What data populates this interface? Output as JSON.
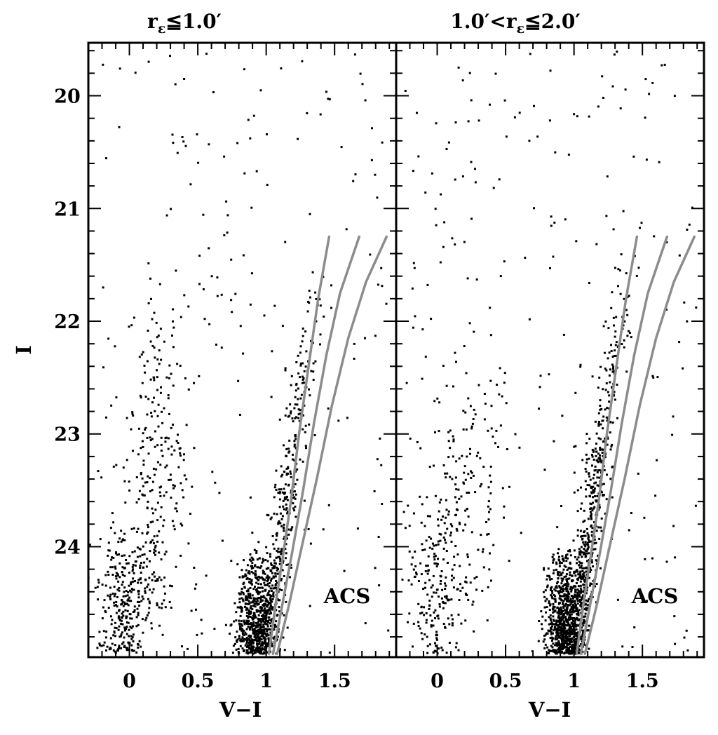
{
  "chart_data": [
    {
      "type": "scatter",
      "panel": "left",
      "title": "rε≦1.0′",
      "title_main": "r",
      "title_sub": "ε",
      "title_rest": "≦1.0′",
      "xlabel": "V−I",
      "ylabel": "I",
      "xlim": [
        -0.3,
        1.95
      ],
      "ylim": [
        24.98,
        19.53
      ],
      "y_inverted": true,
      "xticks": [
        "0",
        "0.5",
        "1",
        "1.5"
      ],
      "yticks": [
        "20",
        "21",
        "22",
        "23",
        "24"
      ],
      "annotation": "ACS",
      "point_color": "#000000",
      "line_color": "#8c8c8c",
      "populations": {
        "blue_plume": {
          "x_mean": -0.05,
          "x_spread": 0.09,
          "i_range": [
            23.8,
            24.95
          ],
          "count": 260
        },
        "blue_loop": {
          "x_mean": 0.18,
          "x_spread": 0.12,
          "i_range": [
            21.8,
            24.6
          ],
          "count": 280
        },
        "red_clump": {
          "x_mean": 0.92,
          "x_spread": 0.07,
          "i_range": [
            24.0,
            24.95
          ],
          "count": 620
        },
        "rgb": {
          "i_range": [
            21.3,
            24.95
          ],
          "count": 420
        },
        "field": {
          "x_range": [
            -0.25,
            1.9
          ],
          "i_range": [
            19.6,
            24.95
          ],
          "count": 220
        }
      },
      "series": [
        {
          "x": [
            1.46,
            1.38,
            1.31,
            1.24,
            1.18,
            1.12,
            1.07,
            1.02
          ],
          "y": [
            21.25,
            21.8,
            22.4,
            23.0,
            23.6,
            24.1,
            24.5,
            24.95
          ]
        },
        {
          "x": [
            1.68,
            1.54,
            1.44,
            1.35,
            1.27,
            1.19,
            1.12,
            1.05
          ],
          "y": [
            21.25,
            21.75,
            22.3,
            22.9,
            23.5,
            24.05,
            24.5,
            24.95
          ]
        },
        {
          "x": [
            1.88,
            1.73,
            1.6,
            1.48,
            1.37,
            1.26,
            1.17,
            1.08
          ],
          "y": [
            21.25,
            21.65,
            22.15,
            22.75,
            23.4,
            24.0,
            24.5,
            24.95
          ]
        }
      ]
    },
    {
      "type": "scatter",
      "panel": "right",
      "title": "1.0′<rε≦2.0′",
      "title_main": "1.0′<r",
      "title_sub": "ε",
      "title_rest": "≦2.0′",
      "xlabel": "V−I",
      "xlim": [
        -0.3,
        1.95
      ],
      "ylim": [
        24.98,
        19.53
      ],
      "y_inverted": true,
      "xticks": [
        "0",
        "0.5",
        "1",
        "1.5"
      ],
      "annotation": "ACS",
      "point_color": "#000000",
      "line_color": "#8c8c8c",
      "populations": {
        "blue_plume": {
          "x_mean": -0.02,
          "x_spread": 0.1,
          "i_range": [
            23.5,
            24.95
          ],
          "count": 170
        },
        "blue_loop": {
          "x_mean": 0.2,
          "x_spread": 0.13,
          "i_range": [
            22.3,
            24.5
          ],
          "count": 170
        },
        "red_clump": {
          "x_mean": 0.93,
          "x_spread": 0.07,
          "i_range": [
            24.0,
            24.95
          ],
          "count": 800
        },
        "rgb": {
          "i_range": [
            21.3,
            24.95
          ],
          "count": 560
        },
        "field": {
          "x_range": [
            -0.25,
            1.9
          ],
          "i_range": [
            19.6,
            24.95
          ],
          "count": 230
        }
      },
      "series": [
        {
          "x": [
            1.46,
            1.38,
            1.31,
            1.24,
            1.18,
            1.12,
            1.07,
            1.02
          ],
          "y": [
            21.25,
            21.8,
            22.4,
            23.0,
            23.6,
            24.1,
            24.5,
            24.95
          ]
        },
        {
          "x": [
            1.68,
            1.54,
            1.44,
            1.35,
            1.27,
            1.19,
            1.12,
            1.05
          ],
          "y": [
            21.25,
            21.75,
            22.3,
            22.9,
            23.5,
            24.05,
            24.5,
            24.95
          ]
        },
        {
          "x": [
            1.88,
            1.73,
            1.6,
            1.48,
            1.37,
            1.26,
            1.17,
            1.08
          ],
          "y": [
            21.25,
            21.65,
            22.15,
            22.75,
            23.4,
            24.0,
            24.5,
            24.95
          ]
        }
      ]
    }
  ]
}
